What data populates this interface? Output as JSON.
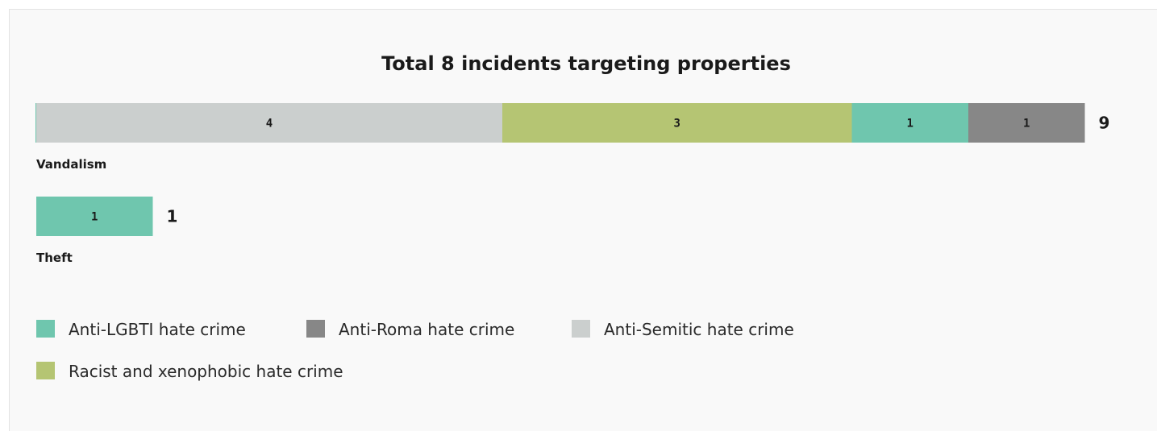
{
  "chart_data": {
    "type": "bar",
    "orientation": "horizontal",
    "stacked": true,
    "title": "Total 8 incidents targeting properties",
    "categories": [
      "Vandalism",
      "Theft"
    ],
    "series": [
      {
        "name": "Anti-Semitic hate crime",
        "color": "#cbcfce",
        "values": [
          4,
          0
        ]
      },
      {
        "name": "Racist and xenophobic hate crime",
        "color": "#b5c573",
        "values": [
          3,
          0
        ]
      },
      {
        "name": "Anti-LGBTI hate crime",
        "color": "#6fc6ae",
        "values": [
          1,
          1
        ]
      },
      {
        "name": "Anti-Roma hate crime",
        "color": "#878787",
        "values": [
          1,
          0
        ]
      }
    ],
    "totals": [
      9,
      1
    ],
    "xlim": [
      0,
      9
    ],
    "grid": false,
    "legend": {
      "position": "bottom-left",
      "order": [
        "Anti-LGBTI hate crime",
        "Anti-Roma hate crime",
        "Anti-Semitic hate crime",
        "Racist and xenophobic hate crime"
      ]
    }
  }
}
